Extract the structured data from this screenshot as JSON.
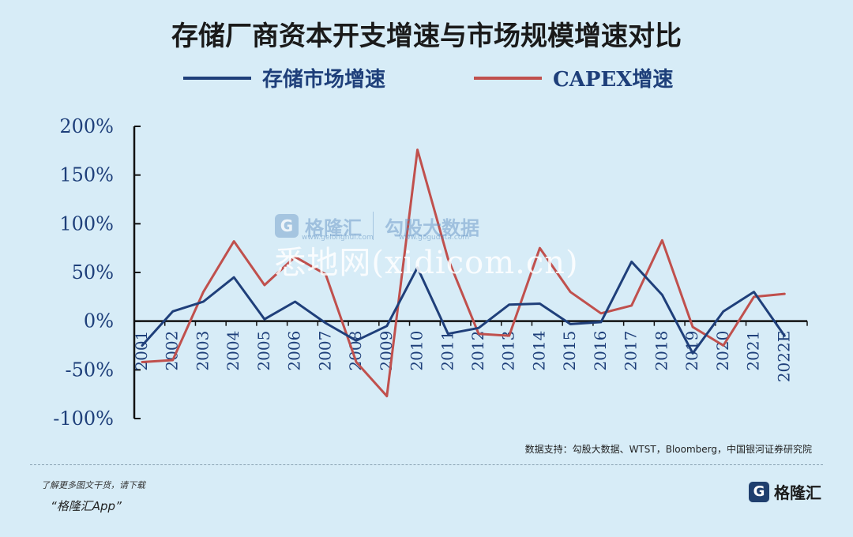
{
  "chart_data": {
    "type": "line",
    "title": "存储厂商资本开支增速与市场规模增速对比",
    "categories": [
      "2001",
      "2002",
      "2003",
      "2004",
      "2005",
      "2006",
      "2007",
      "2008",
      "2009",
      "2010",
      "2011",
      "2012",
      "2013",
      "2014",
      "2015",
      "2016",
      "2017",
      "2018",
      "2019",
      "2020",
      "2021",
      "2022E"
    ],
    "series": [
      {
        "name": "存储市场增速",
        "color": "#1f3f7a",
        "values": [
          -25,
          10,
          20,
          45,
          2,
          20,
          -2,
          -20,
          -5,
          55,
          -13,
          -7,
          17,
          18,
          -3,
          -1,
          61,
          27,
          -33,
          10,
          30,
          -15
        ]
      },
      {
        "name": "CAPEX增速",
        "color": "#c0504d",
        "values": [
          -42,
          -40,
          30,
          82,
          37,
          66,
          48,
          -42,
          -77,
          176,
          64,
          -13,
          -15,
          75,
          30,
          8,
          16,
          83,
          -6,
          -25,
          25,
          28
        ]
      }
    ],
    "ylim": [
      -100,
      200
    ],
    "yticks": [
      -100,
      -50,
      0,
      50,
      100,
      150,
      200
    ],
    "ytick_labels": [
      "-100%",
      "-50%",
      "0%",
      "50%",
      "100%",
      "150%",
      "200%"
    ],
    "legend_position": "top",
    "grid": false
  },
  "source": "数据支持：勾股大数据、WTST，Bloomberg，中国银河证券研究院",
  "watermarks": {
    "center": "悉地网(xidicom.cn)",
    "brand1": "格隆汇",
    "brand1_sub": "www.gelonghui.com",
    "brand2": "勾股大数据",
    "brand2_sub": "www.gogudata.com"
  },
  "footer": {
    "note": "了解更多图文干货，请下载",
    "app": "“格隆汇App”",
    "logo_text": "格隆汇",
    "logo_mark": "G"
  }
}
